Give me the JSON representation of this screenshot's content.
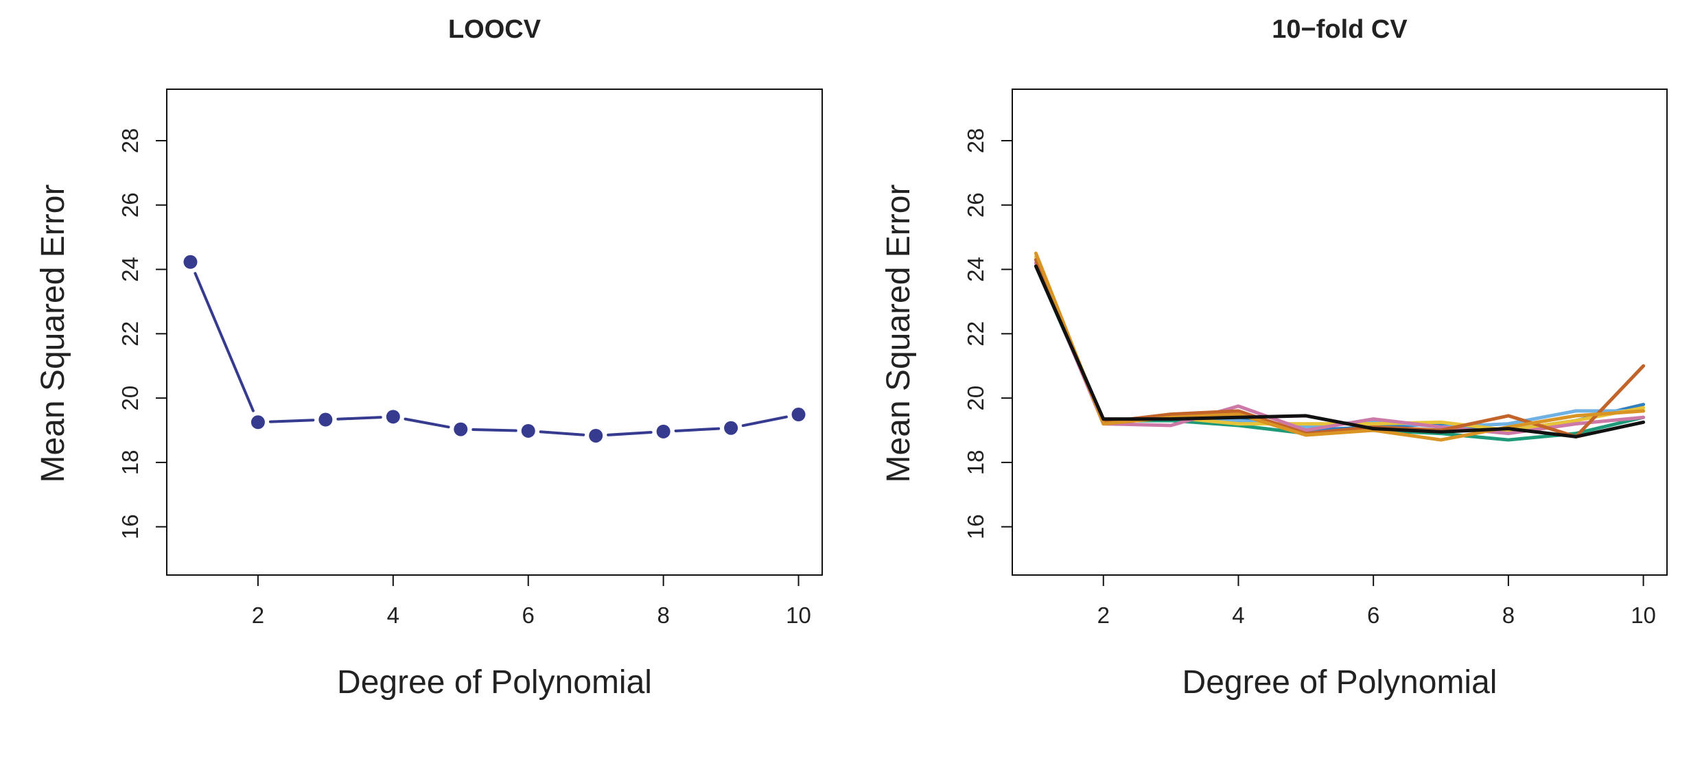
{
  "chart_data": [
    {
      "type": "line",
      "title": "LOOCV",
      "xlabel": "Degree of Polynomial",
      "ylabel": "Mean Squared Error",
      "xlim": [
        0.65,
        10.35
      ],
      "ylim": [
        14.5,
        29.6
      ],
      "x_ticks": [
        2,
        4,
        6,
        8,
        10
      ],
      "y_ticks": [
        16,
        18,
        20,
        22,
        24,
        26,
        28
      ],
      "grid": false,
      "style": "points connected by line segments",
      "color": "#363b8f",
      "x": [
        1,
        2,
        3,
        4,
        5,
        6,
        7,
        8,
        9,
        10
      ],
      "series": [
        {
          "values": [
            24.23,
            19.25,
            19.33,
            19.42,
            19.03,
            18.98,
            18.83,
            18.96,
            19.07,
            19.49
          ]
        }
      ]
    },
    {
      "type": "line",
      "title": "10−fold CV",
      "xlabel": "Degree of Polynomial",
      "ylabel": "Mean Squared Error",
      "xlim": [
        0.65,
        10.35
      ],
      "ylim": [
        14.5,
        29.6
      ],
      "x_ticks": [
        2,
        4,
        6,
        8,
        10
      ],
      "y_ticks": [
        16,
        18,
        20,
        22,
        24,
        26,
        28
      ],
      "grid": false,
      "x": [
        1,
        2,
        3,
        4,
        5,
        6,
        7,
        8,
        9,
        10
      ],
      "series": [
        {
          "color": "#2f7fc1",
          "values": [
            24.3,
            19.3,
            19.3,
            19.4,
            19.0,
            19.1,
            19.2,
            19.0,
            19.3,
            19.8
          ]
        },
        {
          "color": "#6fb1e3",
          "values": [
            24.2,
            19.25,
            19.35,
            19.3,
            19.1,
            19.3,
            19.1,
            19.2,
            19.6,
            19.6
          ]
        },
        {
          "color": "#1e9a78",
          "values": [
            24.1,
            19.3,
            19.3,
            19.15,
            18.9,
            19.0,
            18.9,
            18.7,
            18.9,
            19.4
          ]
        },
        {
          "color": "#e6c33a",
          "values": [
            24.4,
            19.25,
            19.4,
            19.2,
            19.2,
            19.2,
            19.25,
            19.0,
            19.3,
            19.7
          ]
        },
        {
          "color": "#cc79a7",
          "values": [
            24.2,
            19.2,
            19.15,
            19.75,
            19.0,
            19.35,
            19.1,
            18.9,
            19.2,
            19.4
          ]
        },
        {
          "color": "#c2632a",
          "values": [
            24.3,
            19.25,
            19.5,
            19.6,
            18.9,
            19.1,
            19.0,
            19.45,
            18.8,
            21.0
          ]
        },
        {
          "color": "#d99424",
          "values": [
            24.5,
            19.2,
            19.4,
            19.5,
            18.85,
            19.0,
            18.7,
            19.1,
            19.45,
            19.6
          ]
        },
        {
          "color": "#111111",
          "values": [
            24.1,
            19.35,
            19.35,
            19.4,
            19.45,
            19.05,
            18.95,
            19.05,
            18.8,
            19.25
          ]
        }
      ]
    }
  ]
}
